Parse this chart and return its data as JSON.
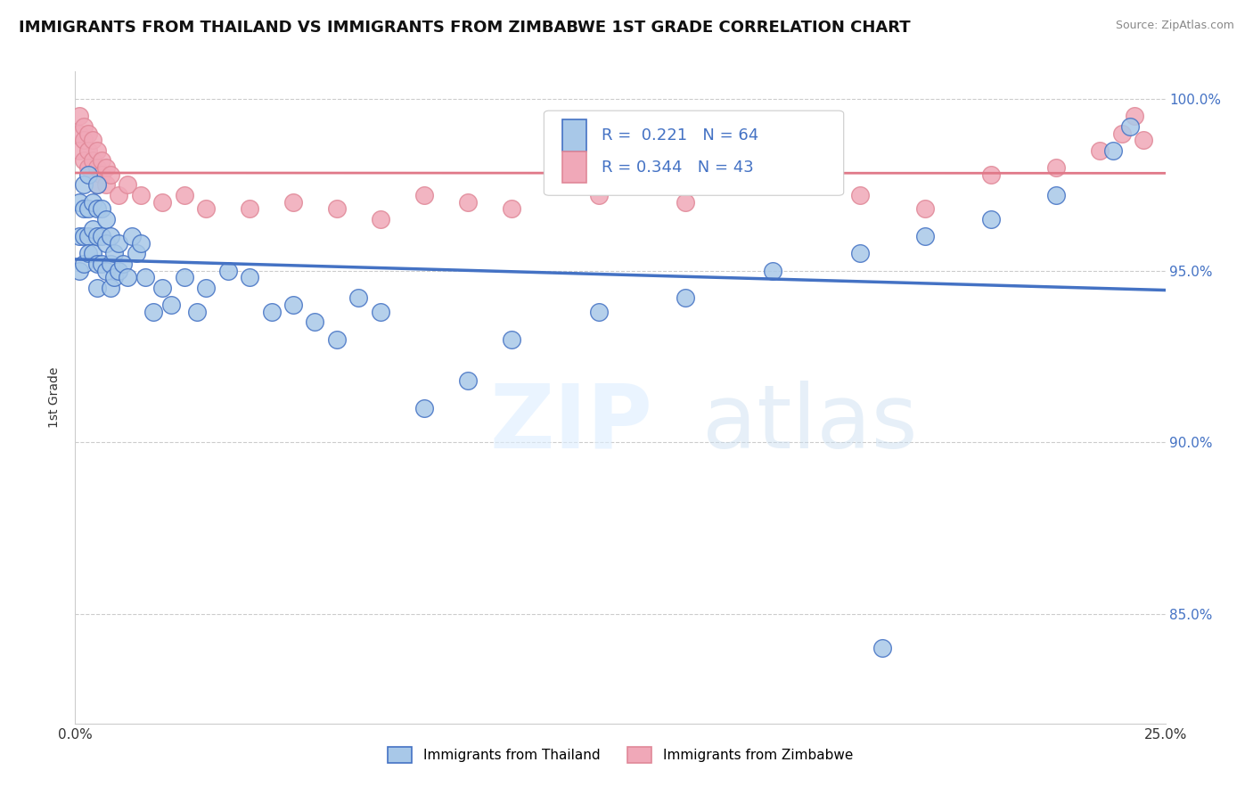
{
  "title": "IMMIGRANTS FROM THAILAND VS IMMIGRANTS FROM ZIMBABWE 1ST GRADE CORRELATION CHART",
  "source": "Source: ZipAtlas.com",
  "yaxis_label": "1st Grade",
  "xlim": [
    0.0,
    0.25
  ],
  "ylim": [
    0.818,
    1.008
  ],
  "xtick_positions": [
    0.0,
    0.05,
    0.1,
    0.15,
    0.2,
    0.25
  ],
  "xtick_labels": [
    "0.0%",
    "",
    "",
    "",
    "",
    "25.0%"
  ],
  "ytick_positions": [
    0.85,
    0.9,
    0.95,
    1.0
  ],
  "ytick_labels": [
    "85.0%",
    "90.0%",
    "95.0%",
    "100.0%"
  ],
  "thailand_color": "#a8c8e8",
  "thailand_edge": "#4472c4",
  "zimbabwe_color": "#f0a8b8",
  "zimbabwe_edge": "#e08898",
  "thailand_line_color": "#4472c4",
  "zimbabwe_line_color": "#e07888",
  "legend_R_thailand": "R =  0.221",
  "legend_N_thailand": "N = 64",
  "legend_R_zimbabwe": "R = 0.344",
  "legend_N_zimbabwe": "N = 43",
  "thailand_label": "Immigrants from Thailand",
  "zimbabwe_label": "Immigrants from Zimbabwe",
  "thailand_x": [
    0.001,
    0.001,
    0.001,
    0.002,
    0.002,
    0.002,
    0.002,
    0.003,
    0.003,
    0.003,
    0.003,
    0.004,
    0.004,
    0.004,
    0.005,
    0.005,
    0.005,
    0.005,
    0.005,
    0.006,
    0.006,
    0.006,
    0.007,
    0.007,
    0.007,
    0.008,
    0.008,
    0.008,
    0.009,
    0.009,
    0.01,
    0.01,
    0.011,
    0.012,
    0.013,
    0.014,
    0.015,
    0.016,
    0.018,
    0.02,
    0.022,
    0.025,
    0.028,
    0.03,
    0.035,
    0.04,
    0.045,
    0.05,
    0.055,
    0.06,
    0.065,
    0.07,
    0.08,
    0.09,
    0.1,
    0.12,
    0.14,
    0.16,
    0.18,
    0.195,
    0.21,
    0.225,
    0.238,
    0.242
  ],
  "thailand_y": [
    0.97,
    0.96,
    0.95,
    0.975,
    0.968,
    0.96,
    0.952,
    0.978,
    0.968,
    0.96,
    0.955,
    0.97,
    0.962,
    0.955,
    0.975,
    0.968,
    0.96,
    0.952,
    0.945,
    0.968,
    0.96,
    0.952,
    0.965,
    0.958,
    0.95,
    0.96,
    0.952,
    0.945,
    0.955,
    0.948,
    0.958,
    0.95,
    0.952,
    0.948,
    0.96,
    0.955,
    0.958,
    0.948,
    0.938,
    0.945,
    0.94,
    0.948,
    0.938,
    0.945,
    0.95,
    0.948,
    0.938,
    0.94,
    0.935,
    0.93,
    0.942,
    0.938,
    0.91,
    0.918,
    0.93,
    0.938,
    0.942,
    0.95,
    0.955,
    0.96,
    0.965,
    0.972,
    0.985,
    0.992
  ],
  "thailand_y_outlier": [
    0.84
  ],
  "thailand_x_outlier": [
    0.185
  ],
  "zimbabwe_x": [
    0.001,
    0.001,
    0.001,
    0.002,
    0.002,
    0.002,
    0.003,
    0.003,
    0.003,
    0.004,
    0.004,
    0.005,
    0.005,
    0.005,
    0.006,
    0.006,
    0.007,
    0.007,
    0.008,
    0.01,
    0.012,
    0.015,
    0.02,
    0.025,
    0.03,
    0.04,
    0.05,
    0.06,
    0.07,
    0.08,
    0.09,
    0.1,
    0.12,
    0.14,
    0.16,
    0.18,
    0.195,
    0.21,
    0.225,
    0.235,
    0.24,
    0.243,
    0.245
  ],
  "zimbabwe_y": [
    0.995,
    0.99,
    0.985,
    0.992,
    0.988,
    0.982,
    0.99,
    0.985,
    0.98,
    0.988,
    0.982,
    0.985,
    0.98,
    0.975,
    0.982,
    0.978,
    0.98,
    0.975,
    0.978,
    0.972,
    0.975,
    0.972,
    0.97,
    0.972,
    0.968,
    0.968,
    0.97,
    0.968,
    0.965,
    0.972,
    0.97,
    0.968,
    0.972,
    0.97,
    0.975,
    0.972,
    0.968,
    0.978,
    0.98,
    0.985,
    0.99,
    0.995,
    0.988
  ],
  "grid_color": "#cccccc",
  "grid_linestyle": "--",
  "watermark_color": "#ddeeff",
  "watermark_alpha": 0.6
}
